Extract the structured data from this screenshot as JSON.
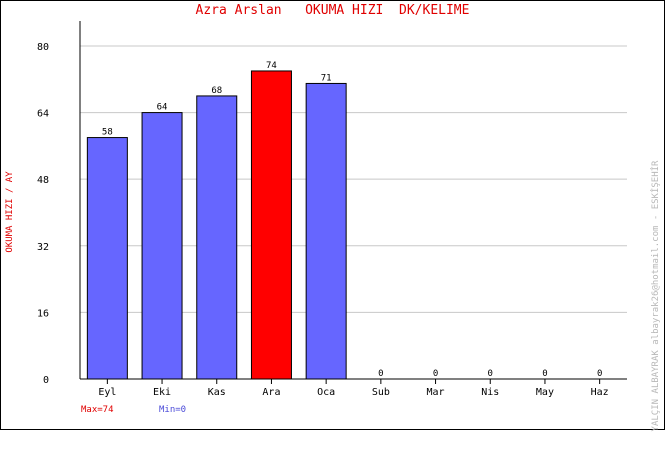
{
  "header": {
    "student_name": "Azra Arslan",
    "metric_title": "OKUMA HIZI  DK/KELIME"
  },
  "side": {
    "ylabel": "OKUMA HIZI / AY",
    "credit": "YALÇIN ALBAYRAK  albayrak26@hotmail.com - ESKİŞEHİR"
  },
  "footer": {
    "max_label": "Max=74",
    "min_label": "Min=0"
  },
  "colors": {
    "bar": "#6666ff",
    "max_bar": "#ff0000",
    "grid": "#c8c8c8"
  },
  "chart_data": {
    "type": "bar",
    "categories": [
      "Eyl",
      "Eki",
      "Kas",
      "Ara",
      "Oca",
      "Sub",
      "Mar",
      "Nis",
      "May",
      "Haz"
    ],
    "values": [
      58,
      64,
      68,
      74,
      71,
      0,
      0,
      0,
      0,
      0
    ],
    "ylim": [
      0,
      86
    ],
    "yticks": [
      0,
      16,
      32,
      48,
      64,
      80
    ],
    "highlight_index": 3,
    "grid": true
  }
}
